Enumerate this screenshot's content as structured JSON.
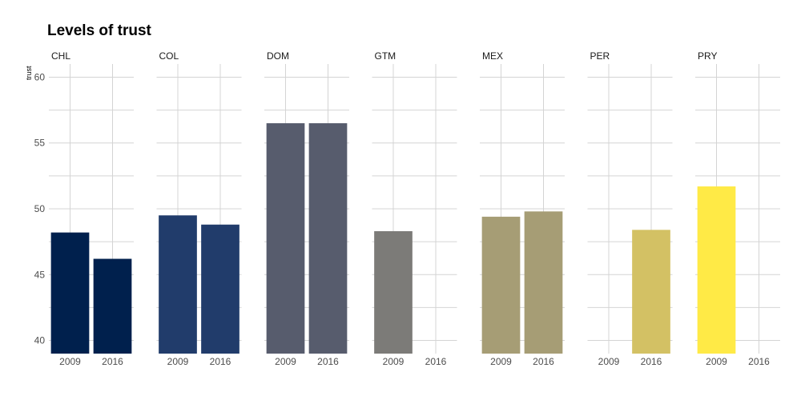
{
  "chart_data": {
    "type": "bar",
    "title": "Levels of trust",
    "ylabel": "trust",
    "xlabel": "",
    "ylim": [
      39,
      61
    ],
    "yticks": [
      40,
      45,
      50,
      55,
      60
    ],
    "categories": [
      "2009",
      "2016"
    ],
    "facets": [
      {
        "name": "CHL",
        "color": "#00204D",
        "values": [
          48.2,
          46.2
        ]
      },
      {
        "name": "COL",
        "color": "#213C6B",
        "values": [
          49.5,
          48.8
        ]
      },
      {
        "name": "DOM",
        "color": "#575C6D",
        "values": [
          56.5,
          56.5
        ]
      },
      {
        "name": "GTM",
        "color": "#7C7B78",
        "values": [
          48.3,
          null
        ]
      },
      {
        "name": "MEX",
        "color": "#A69D75",
        "values": [
          49.4,
          49.8
        ]
      },
      {
        "name": "PER",
        "color": "#D3C164",
        "values": [
          null,
          48.4
        ]
      },
      {
        "name": "PRY",
        "color": "#FFEA46",
        "values": [
          51.7,
          null
        ]
      }
    ]
  }
}
